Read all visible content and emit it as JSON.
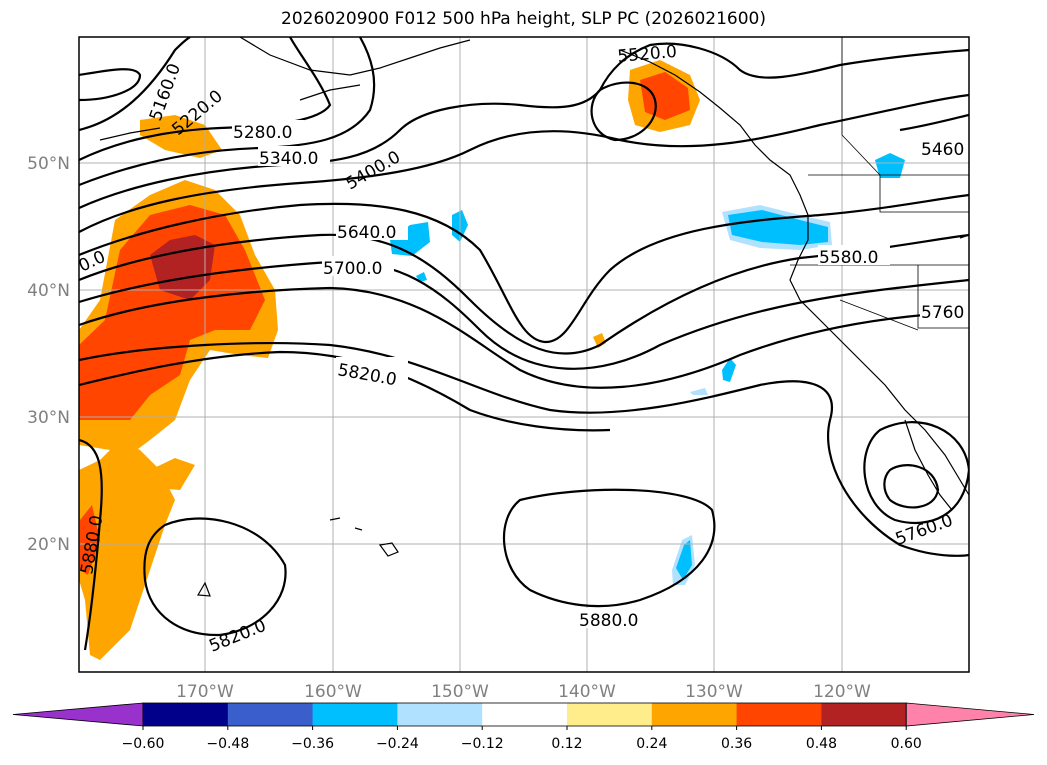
{
  "title": "2026020900 F012 500 hPa height, SLP PC (2026021600)",
  "lon_labels": [
    "170°W",
    "160°W",
    "150°W",
    "140°W",
    "130°W",
    "120°W"
  ],
  "lat_labels": [
    "50°N",
    "40°N",
    "30°N",
    "20°N"
  ],
  "colorbar": {
    "ticks": [
      "−0.60",
      "−0.48",
      "−0.36",
      "−0.24",
      "−0.12",
      "0.12",
      "0.24",
      "0.36",
      "0.48",
      "0.60"
    ],
    "colors": [
      "#9932cc",
      "#00008b",
      "#3a5fcd",
      "#00bfff",
      "#b0e2ff",
      "#ffffff",
      "#ffec8b",
      "#ffa500",
      "#ff4500",
      "#b22222",
      "#ff82ab"
    ]
  },
  "contour_labels": {
    "c5160": "5160.0",
    "c5220": "5220.0",
    "c5280": "5280.0",
    "c5340": "5340.0",
    "c5400": "5400.0",
    "c5460": "5460",
    "c5520": "5520.0",
    "c5580": "5580.0",
    "c5640": "5640.0",
    "c5700": "5700.0",
    "c5760_e": "5760",
    "c5760_s": "5760.0",
    "c5820_a": "5820.0",
    "c5820_b": "5820.0",
    "c5880_a": "5880.0",
    "c5880_b": "5880.0",
    "c0_left": "0.0"
  }
}
